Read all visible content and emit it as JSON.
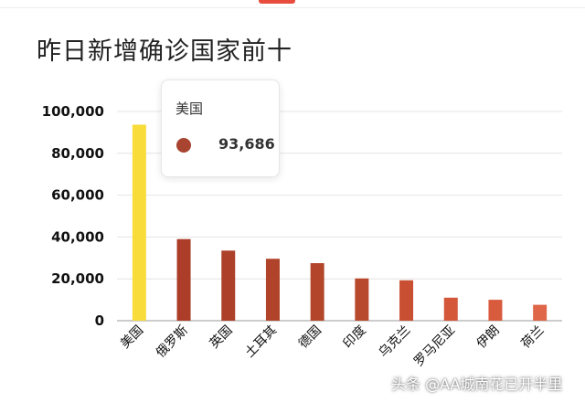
{
  "chart_data": {
    "type": "bar",
    "title": "昨日新增确诊国家前十",
    "categories": [
      "美国",
      "俄罗斯",
      "英国",
      "土耳其",
      "德国",
      "印度",
      "乌克兰",
      "罗马尼亚",
      "伊朗",
      "荷兰"
    ],
    "values": [
      93686,
      39000,
      33500,
      29600,
      27500,
      20200,
      19300,
      11000,
      10000,
      7600
    ],
    "bar_colors": [
      "#f7dc3a",
      "#ab3d29",
      "#ad4029",
      "#b04329",
      "#b3462a",
      "#b8492c",
      "#c94f32",
      "#d4573a",
      "#d85b3e",
      "#e0664a"
    ],
    "yticks": [
      "0",
      "20,000",
      "40,000",
      "60,000",
      "80,000",
      "100,000"
    ],
    "ytick_values": [
      0,
      20000,
      40000,
      60000,
      80000,
      100000
    ],
    "ylim": [
      0,
      100000
    ],
    "grid": true,
    "xlabel": "",
    "ylabel": ""
  },
  "tooltip": {
    "label": "美国",
    "value": "93,686",
    "dot_color": "#a8442f"
  },
  "watermark": "头条 @AA城南花已开半里"
}
